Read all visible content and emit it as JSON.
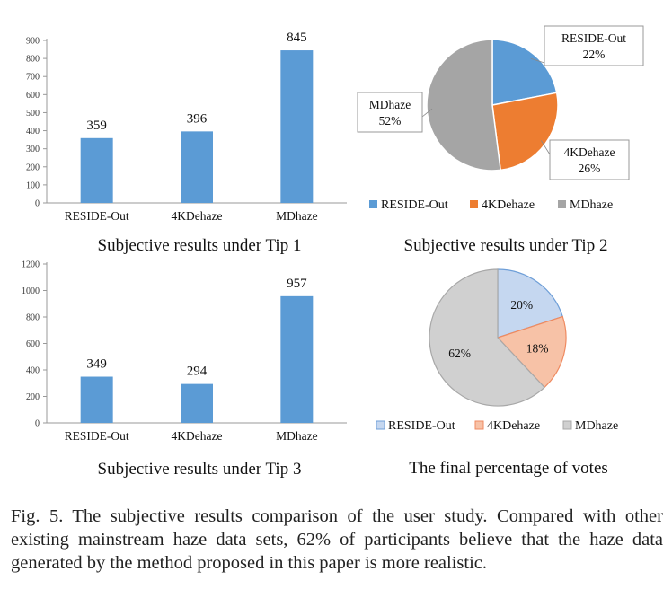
{
  "chart_data": [
    {
      "type": "bar",
      "title": "Subjective results under Tip 1",
      "categories": [
        "RESIDE-Out",
        "4KDehaze",
        "MDhaze"
      ],
      "values": [
        359,
        396,
        845
      ],
      "ylim": [
        0,
        900
      ],
      "yticks": [
        0,
        100,
        200,
        300,
        400,
        500,
        600,
        700,
        800,
        900
      ],
      "color": "#5b9bd5"
    },
    {
      "type": "pie",
      "title": "Subjective results under Tip 2",
      "labels": [
        "RESIDE-Out",
        "4KDehaze",
        "MDhaze"
      ],
      "values": [
        22,
        26,
        52
      ],
      "value_labels": [
        "22%",
        "26%",
        "52%"
      ],
      "colors": [
        "#5b9bd5",
        "#ed7d31",
        "#a5a5a5"
      ],
      "legend_position": "bottom"
    },
    {
      "type": "bar",
      "title": "Subjective results under Tip 3",
      "categories": [
        "RESIDE-Out",
        "4KDehaze",
        "MDhaze"
      ],
      "values": [
        349,
        294,
        957
      ],
      "ylim": [
        0,
        1200
      ],
      "yticks": [
        0,
        200,
        400,
        600,
        800,
        1000,
        1200
      ],
      "color": "#5b9bd5"
    },
    {
      "type": "pie",
      "title": "The final percentage of votes",
      "labels": [
        "RESIDE-Out",
        "4KDehaze",
        "MDhaze"
      ],
      "values": [
        20,
        18,
        62
      ],
      "value_labels": [
        "20%",
        "18%",
        "62%"
      ],
      "colors": [
        "#c5d7f0",
        "#f7c2a7",
        "#d0d0d0"
      ],
      "edge_colors": [
        "#6f9fd8",
        "#ef8a60",
        "#a8a8a8"
      ],
      "legend_position": "bottom"
    }
  ],
  "caption": {
    "label": "Fig. 5.",
    "text": "The subjective results comparison of the user study. Compared with other existing mainstream haze data sets, 62% of participants believe that the haze data generated by the method proposed in this paper is more realistic."
  }
}
